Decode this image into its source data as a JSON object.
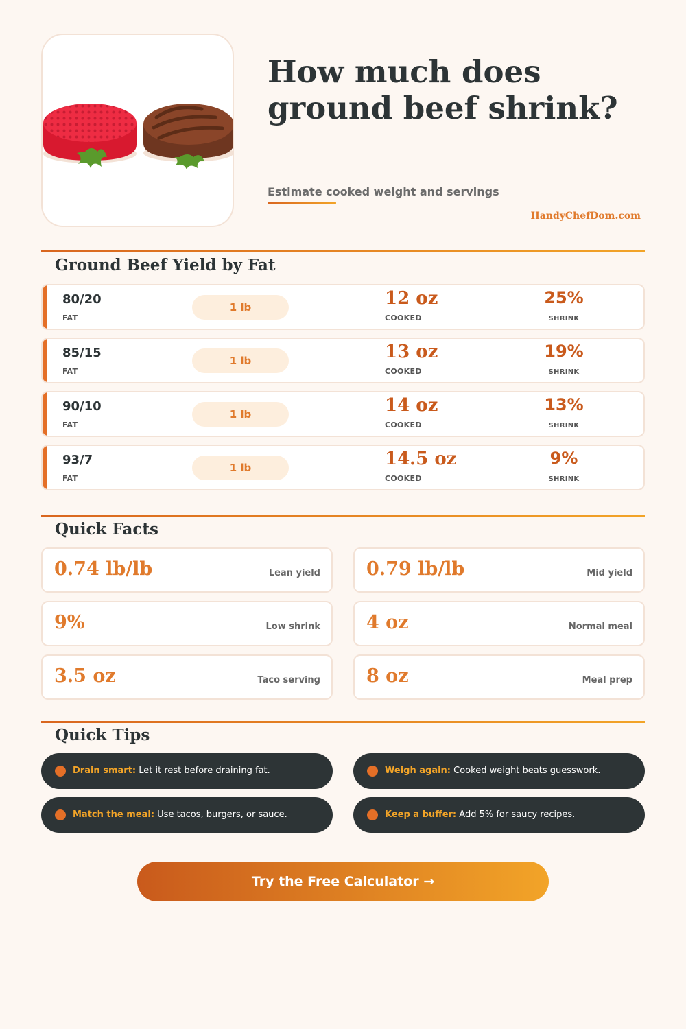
{
  "header": {
    "title": "How much does ground beef shrink?",
    "subtitle": "Estimate cooked weight and servings",
    "brand": "HandyChefDom.com"
  },
  "yield_section": {
    "title": "Ground Beef Yield by Fat",
    "fat_label": "FAT",
    "cooked_label": "COOKED",
    "shrink_label": "SHRINK",
    "rows": [
      {
        "ratio": "80/20",
        "raw": "1 lb",
        "cooked": "12 oz",
        "shrink": "25%"
      },
      {
        "ratio": "85/15",
        "raw": "1 lb",
        "cooked": "13 oz",
        "shrink": "19%"
      },
      {
        "ratio": "90/10",
        "raw": "1 lb",
        "cooked": "14 oz",
        "shrink": "13%"
      },
      {
        "ratio": "93/7",
        "raw": "1 lb",
        "cooked": "14.5 oz",
        "shrink": "9%"
      }
    ]
  },
  "facts_section": {
    "title": "Quick Facts",
    "facts": [
      {
        "value": "0.74 lb/lb",
        "label": "Lean yield"
      },
      {
        "value": "0.79 lb/lb",
        "label": "Mid yield"
      },
      {
        "value": "9%",
        "label": "Low shrink"
      },
      {
        "value": "4 oz",
        "label": "Normal meal"
      },
      {
        "value": "3.5 oz",
        "label": "Taco serving"
      },
      {
        "value": "8 oz",
        "label": "Meal prep"
      }
    ]
  },
  "tips_section": {
    "title": "Quick Tips",
    "tips": [
      {
        "head": "Drain smart:",
        "text": "Let it rest before draining fat."
      },
      {
        "head": "Weigh again:",
        "text": "Cooked weight beats guesswork."
      },
      {
        "head": "Match the meal:",
        "text": "Use tacos, burgers, or sauce."
      },
      {
        "head": "Keep a buffer:",
        "text": "Add 5% for saucy recipes."
      }
    ]
  },
  "cta": {
    "label": "Try the Free Calculator →"
  },
  "colors": {
    "accent": "#e07a2c",
    "accent_dark": "#c95a1c",
    "gold": "#f2a428",
    "dark": "#2d3436",
    "cream": "#fdf7f2"
  },
  "icons": {
    "hero": "raw-and-cooked-patty-illustration",
    "tip_bullet": "orange-dot-icon",
    "cta_arrow": "right-arrow"
  }
}
